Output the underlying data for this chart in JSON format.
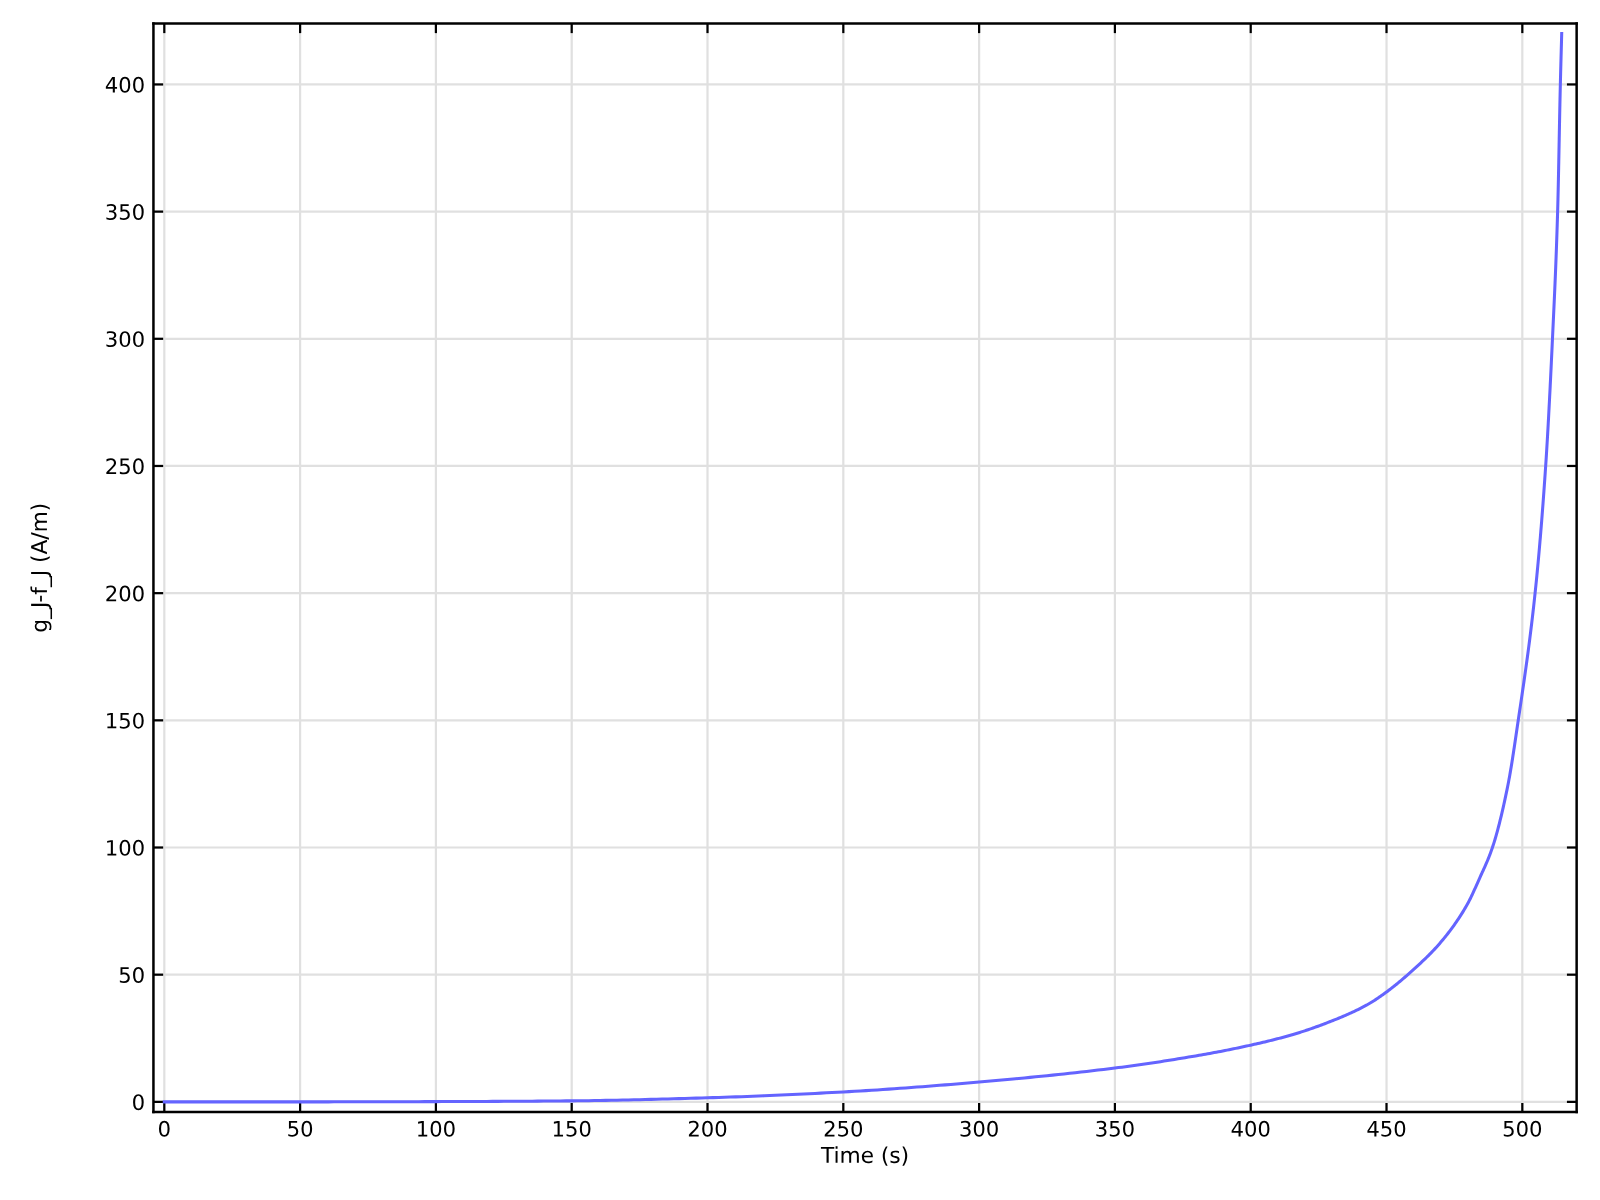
{
  "chart_data": {
    "type": "line",
    "xlabel": "Time (s)",
    "ylabel": "g_J-f_J (A/m)",
    "x": [
      0,
      50,
      100,
      150,
      200,
      250,
      300,
      350,
      381,
      400,
      415.6,
      430.3,
      442.6,
      450,
      459.8,
      469.6,
      479.4,
      484.3,
      489,
      494.6,
      498.5,
      504.7,
      508.6,
      511.1,
      513.0,
      514.0,
      514.5
    ],
    "series": [
      {
        "color": "#6464ff",
        "values": [
          0,
          0,
          0.1,
          0.4,
          1.6,
          3.9,
          7.8,
          13.3,
          18.3,
          22.3,
          26.5,
          32,
          38,
          43.2,
          51.9,
          62.3,
          77,
          88,
          100,
          124,
          150,
          200,
          250,
          300,
          350,
          400,
          420
        ]
      }
    ],
    "xlim": [
      -4,
      520
    ],
    "ylim": [
      -4,
      424
    ],
    "xticks": [
      0,
      50,
      100,
      150,
      200,
      250,
      300,
      350,
      400,
      450,
      500
    ],
    "yticks": [
      0,
      50,
      100,
      150,
      200,
      250,
      300,
      350,
      400
    ],
    "grid": true,
    "line_style": "solid"
  }
}
